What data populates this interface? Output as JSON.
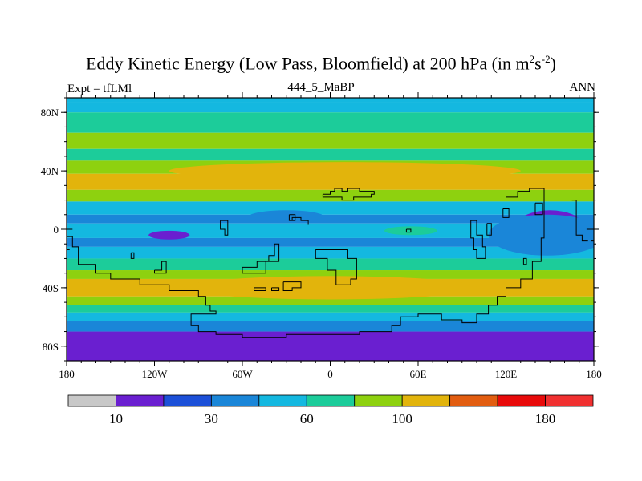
{
  "chart_data": {
    "type": "heatmap",
    "title_main": "Eddy Kinetic Energy (Low Pass, Bloomfield) at 200 hPa (in m",
    "title_sup1": "2",
    "title_mid": "s",
    "title_sup2": "-2",
    "title_end": ")",
    "left_label": "Expt = tfLMl",
    "center_label": "444_5_MaBP",
    "right_label": "ANN",
    "x_axis": {
      "range": [
        -180,
        180
      ],
      "tick_values": [
        -180,
        -120,
        -60,
        0,
        60,
        120,
        180
      ],
      "tick_labels": [
        "180",
        "120W",
        "60W",
        "0",
        "60E",
        "120E",
        "180"
      ]
    },
    "y_axis": {
      "range": [
        -90,
        90
      ],
      "tick_values": [
        80,
        40,
        0,
        -40,
        -80
      ],
      "tick_labels": [
        "80N",
        "40N",
        "0",
        "40S",
        "80S"
      ]
    },
    "levels": [
      10,
      20,
      30,
      45,
      60,
      80,
      100,
      120,
      150,
      180
    ],
    "colors": [
      "#c8c8c8",
      "#6a1fd0",
      "#1c50d8",
      "#1a86d8",
      "#14b8e0",
      "#1ccc9a",
      "#8ed10f",
      "#e2b40c",
      "#e25d10",
      "#e80a0a",
      "#f03030"
    ],
    "colorbar_labels": [
      {
        "level": 10,
        "label": "10"
      },
      {
        "level": 30,
        "label": "30"
      },
      {
        "level": 60,
        "label": "60"
      },
      {
        "level": 100,
        "label": "100"
      },
      {
        "level": 180,
        "label": "180"
      }
    ],
    "bands": [
      {
        "lat_from": 90,
        "lat_to": 87,
        "value": 45
      },
      {
        "lat_from": 87,
        "lat_to": 80,
        "value": 50
      },
      {
        "lat_from": 80,
        "lat_to": 66,
        "value": 65
      },
      {
        "lat_from": 66,
        "lat_to": 55,
        "value": 85
      },
      {
        "lat_from": 55,
        "lat_to": 47,
        "value": 75
      },
      {
        "lat_from": 47,
        "lat_to": 38,
        "value": 90
      },
      {
        "lat_from": 38,
        "lat_to": 27,
        "value": 110
      },
      {
        "lat_from": 27,
        "lat_to": 19,
        "value": 85
      },
      {
        "lat_from": 19,
        "lat_to": 10,
        "value": 55
      },
      {
        "lat_from": 10,
        "lat_to": 4,
        "value": 35
      },
      {
        "lat_from": 4,
        "lat_to": -6,
        "value": 55
      },
      {
        "lat_from": -6,
        "lat_to": -12,
        "value": 35
      },
      {
        "lat_from": -12,
        "lat_to": -20,
        "value": 55
      },
      {
        "lat_from": -20,
        "lat_to": -28,
        "value": 70
      },
      {
        "lat_from": -28,
        "lat_to": -34,
        "value": 90
      },
      {
        "lat_from": -34,
        "lat_to": -46,
        "value": 110
      },
      {
        "lat_from": -46,
        "lat_to": -52,
        "value": 90
      },
      {
        "lat_from": -52,
        "lat_to": -57,
        "value": 70
      },
      {
        "lat_from": -57,
        "lat_to": -63,
        "value": 50
      },
      {
        "lat_from": -63,
        "lat_to": -70,
        "value": 35
      },
      {
        "lat_from": -70,
        "lat_to": -90,
        "value": 18
      }
    ],
    "blobs": [
      {
        "lon": 10,
        "lat": 40,
        "rlon": 120,
        "rlat": 6,
        "value": 110
      },
      {
        "lon": 150,
        "lat": 3,
        "rlon": 22,
        "rlat": 10,
        "value": 18
      },
      {
        "lon": 148,
        "lat": -4,
        "rlon": 40,
        "rlat": 14,
        "value": 35
      },
      {
        "lon": -110,
        "lat": -4,
        "rlon": 14,
        "rlat": 3,
        "value": 18
      },
      {
        "lon": 55,
        "lat": -1,
        "rlon": 18,
        "rlat": 3,
        "value": 75
      },
      {
        "lon": -30,
        "lat": 9,
        "rlon": 25,
        "rlat": 4,
        "value": 35
      },
      {
        "lon": 0,
        "lat": -40,
        "rlon": 100,
        "rlat": 8,
        "value": 110
      }
    ],
    "coastlines": [
      [
        [
          -5,
          24
        ],
        [
          0,
          24
        ],
        [
          0,
          26
        ],
        [
          3,
          26
        ],
        [
          3,
          28
        ],
        [
          8,
          28
        ],
        [
          8,
          26
        ],
        [
          12,
          26
        ],
        [
          12,
          28
        ],
        [
          20,
          28
        ],
        [
          20,
          26
        ],
        [
          30,
          26
        ],
        [
          30,
          24
        ],
        [
          28,
          24
        ],
        [
          28,
          22
        ],
        [
          16,
          22
        ],
        [
          16,
          20
        ],
        [
          8,
          20
        ],
        [
          8,
          22
        ],
        [
          -5,
          22
        ],
        [
          -5,
          24
        ]
      ],
      [
        [
          -180,
          -5
        ],
        [
          -176,
          -5
        ],
        [
          -176,
          -12
        ],
        [
          -172,
          -12
        ],
        [
          -172,
          -24
        ],
        [
          -160,
          -24
        ],
        [
          -160,
          -30
        ],
        [
          -150,
          -30
        ],
        [
          -150,
          -34
        ],
        [
          -130,
          -34
        ],
        [
          -130,
          -38
        ],
        [
          -110,
          -38
        ],
        [
          -110,
          -42
        ],
        [
          -90,
          -42
        ],
        [
          -90,
          -46
        ],
        [
          -85,
          -46
        ],
        [
          -85,
          -52
        ],
        [
          -82,
          -52
        ],
        [
          -82,
          -56
        ],
        [
          -78,
          -56
        ],
        [
          -78,
          -58
        ],
        [
          -95,
          -58
        ],
        [
          -95,
          -66
        ],
        [
          -90,
          -66
        ],
        [
          -90,
          -70
        ],
        [
          -78,
          -70
        ],
        [
          -78,
          -72
        ],
        [
          -60,
          -72
        ],
        [
          -60,
          -74
        ],
        [
          -30,
          -74
        ],
        [
          -30,
          -72
        ],
        [
          20,
          -72
        ],
        [
          20,
          -70
        ],
        [
          42,
          -70
        ],
        [
          42,
          -66
        ],
        [
          48,
          -66
        ],
        [
          48,
          -60
        ],
        [
          60,
          -60
        ],
        [
          60,
          -58
        ],
        [
          76,
          -58
        ],
        [
          76,
          -62
        ],
        [
          90,
          -62
        ],
        [
          90,
          -64
        ],
        [
          100,
          -64
        ],
        [
          100,
          -58
        ],
        [
          108,
          -58
        ],
        [
          108,
          -52
        ],
        [
          114,
          -52
        ],
        [
          114,
          -46
        ],
        [
          120,
          -46
        ],
        [
          120,
          -40
        ],
        [
          130,
          -40
        ],
        [
          130,
          -34
        ],
        [
          138,
          -34
        ],
        [
          138,
          -22
        ],
        [
          144,
          -22
        ],
        [
          144,
          -6
        ],
        [
          146,
          -6
        ],
        [
          146,
          28
        ],
        [
          136,
          28
        ],
        [
          136,
          26
        ],
        [
          128,
          26
        ],
        [
          128,
          22
        ],
        [
          120,
          22
        ],
        [
          120,
          14
        ]
      ],
      [
        [
          -136,
          -16
        ],
        [
          -134,
          -16
        ],
        [
          -134,
          -20
        ],
        [
          -136,
          -20
        ],
        [
          -136,
          -16
        ]
      ],
      [
        [
          -120,
          -28
        ],
        [
          -115,
          -28
        ],
        [
          -115,
          -22
        ],
        [
          -112,
          -22
        ],
        [
          -112,
          -30
        ],
        [
          -120,
          -30
        ],
        [
          -120,
          -28
        ]
      ],
      [
        [
          -52,
          -40
        ],
        [
          -44,
          -40
        ],
        [
          -44,
          -42
        ],
        [
          -52,
          -42
        ],
        [
          -52,
          -40
        ]
      ],
      [
        [
          -40,
          -40
        ],
        [
          -35,
          -40
        ],
        [
          -35,
          -42
        ],
        [
          -40,
          -42
        ],
        [
          -40,
          -40
        ]
      ],
      [
        [
          -32,
          -36
        ],
        [
          -20,
          -36
        ],
        [
          -20,
          -40
        ],
        [
          -26,
          -40
        ],
        [
          -26,
          -42
        ],
        [
          -32,
          -42
        ],
        [
          -32,
          -36
        ]
      ],
      [
        [
          -10,
          -14
        ],
        [
          -10,
          -20
        ],
        [
          -2,
          -20
        ],
        [
          -2,
          -28
        ],
        [
          4,
          -28
        ],
        [
          4,
          -38
        ],
        [
          14,
          -38
        ],
        [
          14,
          -34
        ],
        [
          18,
          -34
        ],
        [
          18,
          -20
        ],
        [
          12,
          -20
        ],
        [
          12,
          -14
        ],
        [
          -10,
          -14
        ]
      ],
      [
        [
          -60,
          -26
        ],
        [
          -50,
          -26
        ],
        [
          -50,
          -22
        ],
        [
          -42,
          -22
        ],
        [
          -42,
          -18
        ],
        [
          -38,
          -18
        ],
        [
          -38,
          -10
        ],
        [
          -35,
          -10
        ],
        [
          -35,
          -22
        ],
        [
          -44,
          -22
        ],
        [
          -44,
          -30
        ],
        [
          -60,
          -30
        ],
        [
          -60,
          -26
        ]
      ],
      [
        [
          -75,
          6
        ],
        [
          -70,
          6
        ],
        [
          -70,
          -4
        ],
        [
          -72,
          -4
        ],
        [
          -72,
          0
        ],
        [
          -75,
          0
        ],
        [
          -75,
          6
        ]
      ],
      [
        [
          -28,
          10
        ],
        [
          -24,
          10
        ],
        [
          -24,
          6
        ],
        [
          -28,
          6
        ],
        [
          -28,
          10
        ]
      ],
      [
        [
          -15,
          3
        ],
        [
          -15,
          6
        ],
        [
          -20,
          6
        ],
        [
          -20,
          8
        ],
        [
          -26,
          8
        ],
        [
          -26,
          6
        ]
      ],
      [
        [
          52,
          0
        ],
        [
          55,
          0
        ],
        [
          55,
          -2
        ],
        [
          52,
          -2
        ],
        [
          52,
          0
        ]
      ],
      [
        [
          98,
          6
        ],
        [
          100,
          6
        ],
        [
          100,
          -4
        ],
        [
          104,
          -4
        ],
        [
          104,
          -12
        ],
        [
          106,
          -12
        ],
        [
          106,
          -20
        ],
        [
          100,
          -20
        ],
        [
          100,
          -14
        ],
        [
          98,
          -14
        ],
        [
          98,
          -6
        ],
        [
          96,
          -6
        ],
        [
          96,
          6
        ],
        [
          98,
          6
        ]
      ],
      [
        [
          107,
          4
        ],
        [
          110,
          4
        ],
        [
          110,
          -4
        ],
        [
          107,
          -4
        ],
        [
          107,
          4
        ]
      ],
      [
        [
          140,
          18
        ],
        [
          145,
          18
        ],
        [
          145,
          10
        ],
        [
          140,
          10
        ],
        [
          140,
          18
        ]
      ],
      [
        [
          118,
          14
        ],
        [
          122,
          14
        ],
        [
          122,
          8
        ],
        [
          118,
          8
        ],
        [
          118,
          14
        ]
      ],
      [
        [
          175,
          0
        ],
        [
          180,
          0
        ]
      ],
      [
        [
          -180,
          0
        ],
        [
          -176,
          0
        ]
      ],
      [
        [
          178,
          -8
        ],
        [
          180,
          -8
        ],
        [
          180,
          -14
        ]
      ],
      [
        [
          -180,
          -14
        ],
        [
          -178,
          -14
        ]
      ],
      [
        [
          132,
          -24
        ],
        [
          134,
          -24
        ],
        [
          134,
          -20
        ],
        [
          132,
          -20
        ],
        [
          132,
          -24
        ]
      ],
      [
        [
          165,
          20
        ],
        [
          168,
          20
        ],
        [
          168,
          -4
        ],
        [
          172,
          -4
        ],
        [
          172,
          -8
        ],
        [
          176,
          -8
        ]
      ]
    ]
  }
}
